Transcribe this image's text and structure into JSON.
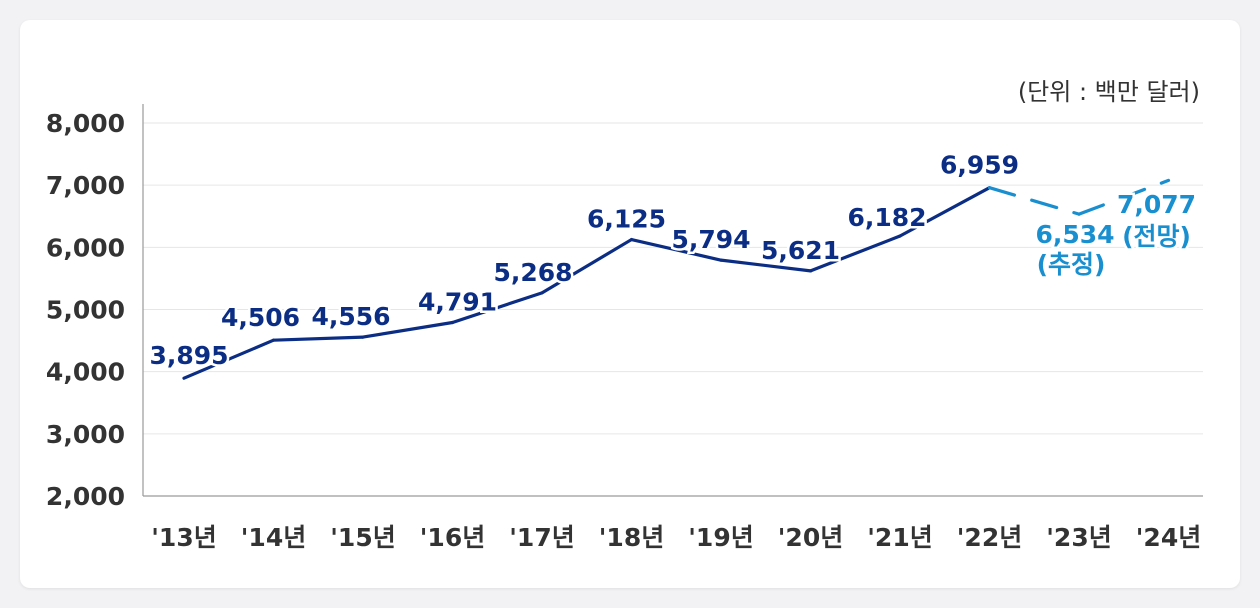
{
  "unit_label": "(단위 : 백만 달러)",
  "colors": {
    "actual": "#0b2d84",
    "forecast": "#1a8fd0",
    "grid": "#e6e6e6",
    "axis": "#9a9a9a",
    "tick_text": "#333333"
  },
  "chart_data": {
    "type": "line",
    "title": "",
    "xlabel": "",
    "ylabel": "",
    "categories": [
      "'13년",
      "'14년",
      "'15년",
      "'16년",
      "'17년",
      "'18년",
      "'19년",
      "'20년",
      "'21년",
      "'22년",
      "'23년",
      "'24년"
    ],
    "ylim": [
      2000,
      8000
    ],
    "yticks": [
      2000,
      3000,
      4000,
      5000,
      6000,
      7000,
      8000
    ],
    "ytick_labels": [
      "2,000",
      "3,000",
      "4,000",
      "5,000",
      "6,000",
      "7,000",
      "8,000"
    ],
    "grid": true,
    "series": [
      {
        "values": [
          3895,
          4506,
          4556,
          4791,
          5268,
          6125,
          5794,
          5621,
          6182,
          6959,
          6534,
          7077
        ],
        "labels": [
          "3,895",
          "4,506",
          "4,556",
          "4,791",
          "5,268",
          "6,125",
          "5,794",
          "5,621",
          "6,182",
          "6,959",
          "6,534",
          "7,077"
        ],
        "notes": [
          "",
          "",
          "",
          "",
          "",
          "",
          "",
          "",
          "",
          "",
          "(추정)",
          "(전망)"
        ],
        "line_style": [
          "solid",
          "solid",
          "solid",
          "solid",
          "solid",
          "solid",
          "solid",
          "solid",
          "solid",
          "dashed",
          "dashed"
        ]
      }
    ]
  }
}
